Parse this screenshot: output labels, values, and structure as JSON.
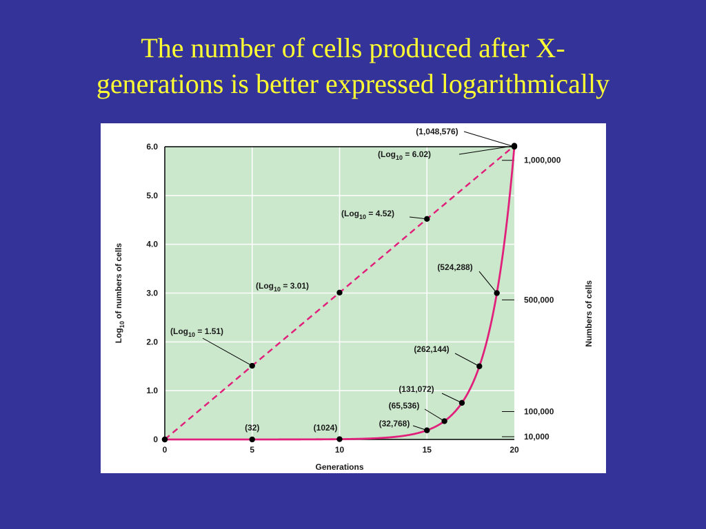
{
  "slide": {
    "title_line1": "The number of cells produced after X-",
    "title_line2": "generations is better expressed logarithmically"
  },
  "colors": {
    "background": "#333399",
    "title": "#ffff33",
    "plot_area": "#cce8cc",
    "curve": "#e0207a",
    "points": "#000000"
  },
  "chart_data": {
    "type": "line",
    "xlabel": "Generations",
    "ylabel_left_prefix": "Log",
    "ylabel_left_sub": "10",
    "ylabel_left_suffix": " of numbers of cells",
    "ylabel_right": "Numbers of cells",
    "xlim": [
      0,
      20
    ],
    "ylim": [
      0,
      6.0
    ],
    "x_ticks": [
      "0",
      "5",
      "10",
      "15",
      "20"
    ],
    "x_tick_values": [
      0,
      5,
      10,
      15,
      20
    ],
    "y_ticks": [
      "0",
      "1.0",
      "2.0",
      "3.0",
      "4.0",
      "5.0",
      "6.0"
    ],
    "y_tick_values": [
      0,
      1,
      2,
      3,
      4,
      5,
      6
    ],
    "right_ticks": [
      "10,000",
      "100,000",
      "500,000",
      "1,000,000"
    ],
    "right_tick_values": [
      10000,
      100000,
      500000,
      1000000
    ],
    "grid": true,
    "series": [
      {
        "style": "dashed",
        "x": [
          0,
          5,
          10,
          15,
          20
        ],
        "y": [
          0,
          1.51,
          3.01,
          4.52,
          6.02
        ],
        "point_labels": [
          "",
          "(Log10 = 1.51)",
          "(Log10 = 3.01)",
          "(Log10 = 4.52)",
          "(Log10 = 6.02)"
        ]
      },
      {
        "style": "solid",
        "x": [
          0,
          5,
          10,
          15,
          16,
          17,
          18,
          19,
          20
        ],
        "y_cells": [
          1,
          32,
          1024,
          32768,
          65536,
          131072,
          262144,
          524288,
          1048576
        ],
        "point_labels": [
          "",
          "(32)",
          "(1024)",
          "(32,768)",
          "(65,536)",
          "(131,072)",
          "(262,144)",
          "(524,288)",
          "(1,048,576)"
        ]
      }
    ],
    "log_labels": [
      {
        "x": 5,
        "prefix": "(Log",
        "sub": "10",
        "suffix": " = 1.51)"
      },
      {
        "x": 10,
        "prefix": "(Log",
        "sub": "10",
        "suffix": " = 3.01)"
      },
      {
        "x": 15,
        "prefix": "(Log",
        "sub": "10",
        "suffix": " = 4.52)"
      },
      {
        "x": 20,
        "prefix": "(Log",
        "sub": "10",
        "suffix": " = 6.02)"
      }
    ]
  }
}
